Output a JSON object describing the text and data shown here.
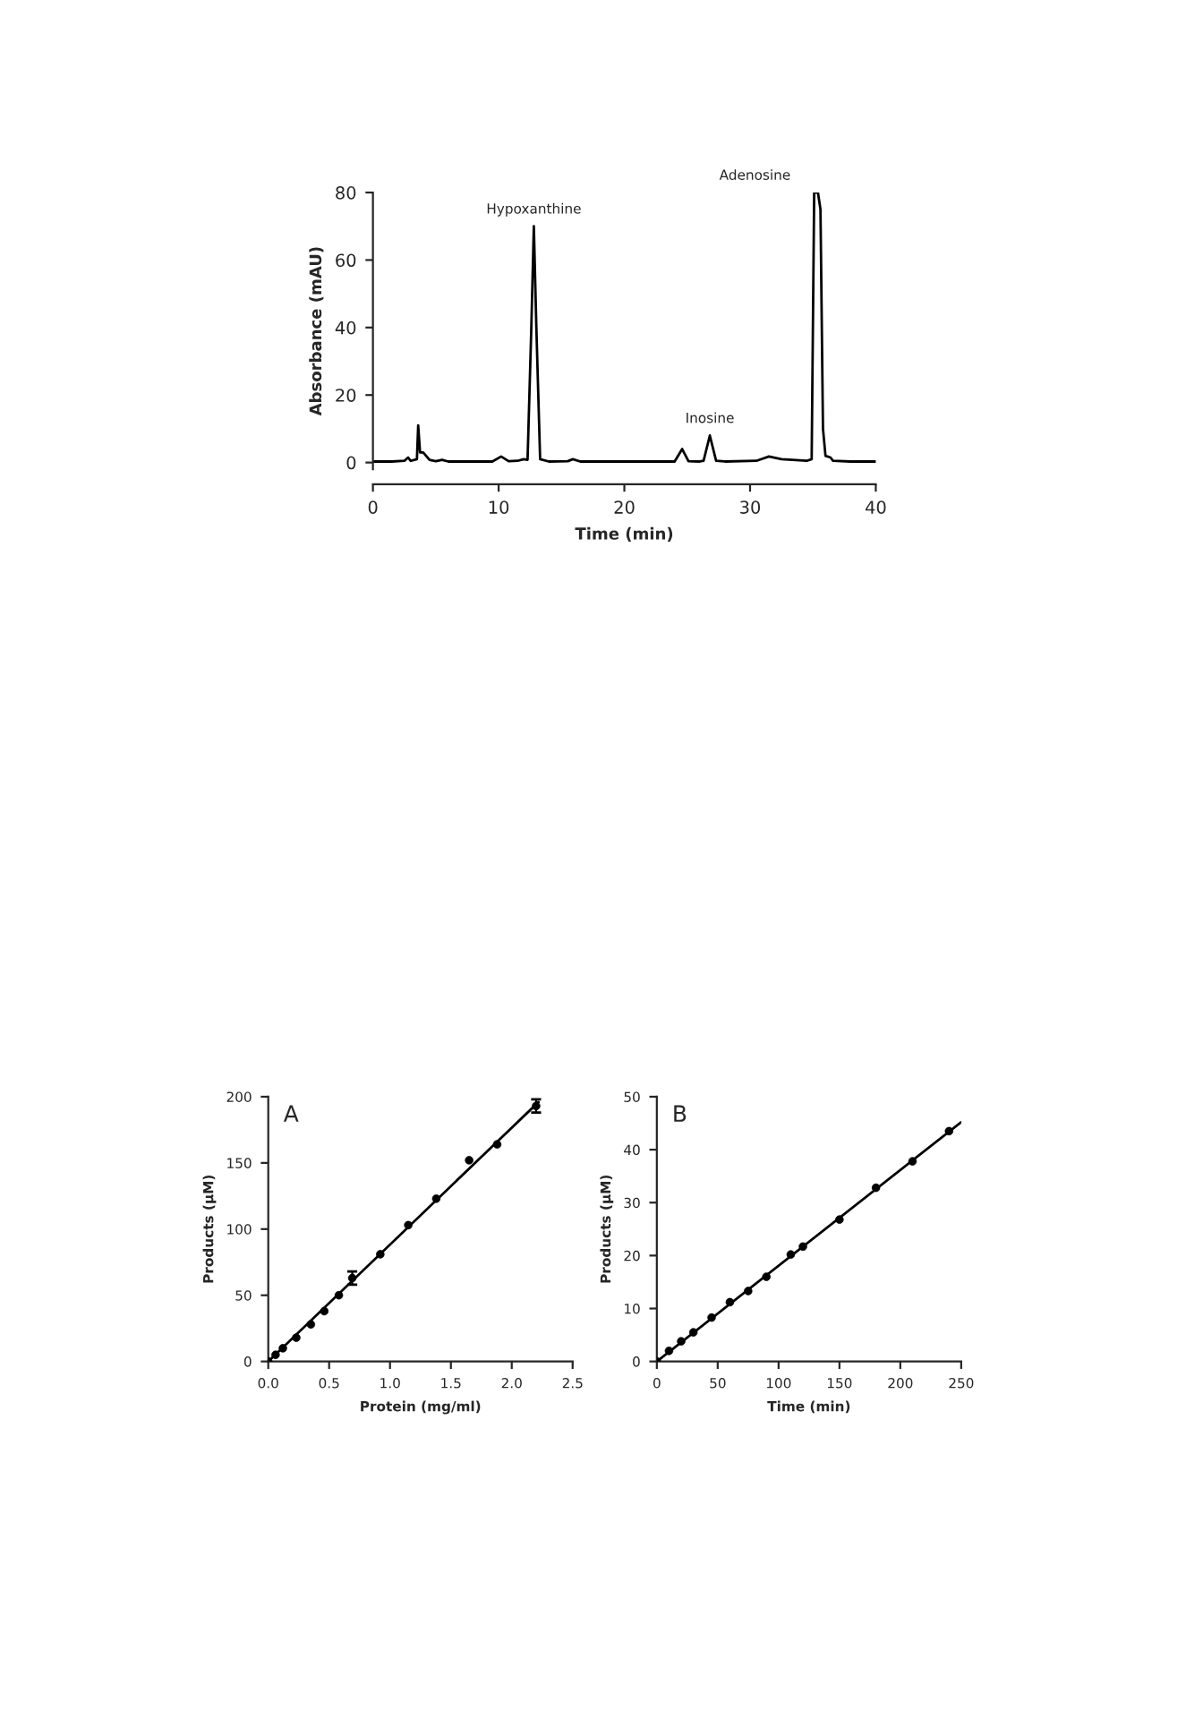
{
  "chart_data": [
    {
      "type": "line",
      "xlabel": "Time (min)",
      "ylabel": "Absorbance (mAU)",
      "xlim": [
        0,
        40
      ],
      "ylim": [
        -2,
        80
      ],
      "xticks": [
        0,
        10,
        20,
        30,
        40
      ],
      "yticks": [
        0,
        20,
        40,
        60,
        80
      ],
      "grid": false,
      "marker": "none",
      "line_style": "solid",
      "series": [
        {
          "color": "#000000",
          "x": [
            0,
            1.5,
            2.5,
            2.8,
            3.0,
            3.5,
            3.6,
            3.75,
            4,
            4.5,
            5,
            5.5,
            6,
            9.5,
            10.2,
            10.8,
            11.5,
            12,
            12.3,
            12.6,
            12.8,
            13.0,
            13.3,
            14,
            15.5,
            15.9,
            16.5,
            24,
            24.6,
            25.1,
            26,
            26.3,
            26.8,
            27.3,
            28,
            30.5,
            31.5,
            32.5,
            34.5,
            34.9,
            35.1,
            35.4,
            35.6,
            35.8,
            36.0,
            36.4,
            36.6,
            38,
            40
          ],
          "values": [
            0.3,
            0.3,
            0.5,
            1.5,
            0.5,
            1,
            11,
            3,
            3,
            0.8,
            0.4,
            0.8,
            0.3,
            0.3,
            1.8,
            0.4,
            0.5,
            1,
            0.8,
            40,
            70,
            40,
            1,
            0.3,
            0.4,
            1,
            0.3,
            0.3,
            4,
            0.4,
            0.3,
            0.5,
            8,
            0.5,
            0.3,
            0.5,
            1.8,
            1,
            0.5,
            1,
            80,
            80,
            75,
            10,
            2,
            1.5,
            0.5,
            0.3,
            0.3
          ]
        }
      ],
      "annotations": [
        {
          "text": "Hypoxanthine",
          "x": 12.8,
          "y": 70
        },
        {
          "text": "Inosine",
          "x": 26.8,
          "y": 8
        },
        {
          "text": "Adenosine",
          "x": 35.2,
          "y": 80
        }
      ]
    },
    {
      "type": "scatter",
      "xlabel": "Protein (mg/ml)",
      "ylabel": "Products (µM)",
      "xlim": [
        0,
        2.5
      ],
      "ylim": [
        0,
        200
      ],
      "xticks": [
        {
          "value": 0,
          "label": "0.0"
        },
        {
          "value": 0.5,
          "label": "0.5"
        },
        {
          "value": 1,
          "label": "1.0"
        },
        {
          "value": 1.5,
          "label": "1.5"
        },
        {
          "value": 2,
          "label": "2.0"
        },
        {
          "value": 2.5,
          "label": "2.5"
        }
      ],
      "yticks": [
        0,
        50,
        100,
        150,
        200
      ],
      "grid": false,
      "series": [
        {
          "color": "#000000",
          "marker": "circle",
          "x": [
            0,
            0.06,
            0.12,
            0.23,
            0.35,
            0.46,
            0.58,
            0.69,
            0.92,
            1.15,
            1.38,
            1.65,
            1.88,
            2.2
          ],
          "values": [
            0,
            5,
            10,
            18,
            28,
            38,
            50,
            63,
            81,
            103,
            123,
            152,
            164,
            193
          ],
          "errors": [
            null,
            null,
            null,
            null,
            null,
            null,
            null,
            5,
            null,
            null,
            null,
            null,
            null,
            5
          ]
        },
        {
          "type": "line",
          "color": "#000000",
          "marker": "none",
          "x": [
            0,
            2.22
          ],
          "values": [
            0,
            196
          ]
        }
      ],
      "annotations": [
        "A"
      ]
    },
    {
      "type": "scatter",
      "xlabel": "Time (min)",
      "ylabel": "Products (µM)",
      "xlim": [
        0,
        250
      ],
      "ylim": [
        0,
        50
      ],
      "xticks": [
        0,
        50,
        100,
        150,
        200,
        250
      ],
      "yticks": [
        0,
        10,
        20,
        30,
        40,
        50
      ],
      "grid": false,
      "series": [
        {
          "color": "#000000",
          "marker": "circle",
          "x": [
            0,
            10,
            20,
            30,
            45,
            60,
            75,
            90,
            110,
            120,
            150,
            180,
            210,
            240
          ],
          "values": [
            0,
            2,
            3.8,
            5.5,
            8.3,
            11.2,
            13.3,
            16,
            20.2,
            21.7,
            26.8,
            32.8,
            37.8,
            43.5
          ]
        },
        {
          "type": "line",
          "color": "#000000",
          "marker": "none",
          "x": [
            0,
            250
          ],
          "values": [
            0,
            45.2
          ]
        }
      ],
      "annotations": [
        "B"
      ]
    }
  ]
}
